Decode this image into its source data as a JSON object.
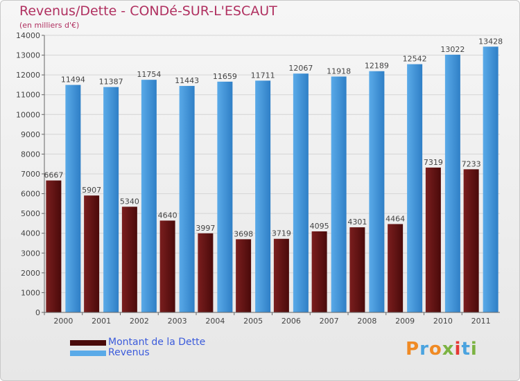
{
  "title": "Revenus/Dette - CONDé-SUR-L'ESCAUT",
  "subtitle": "(en milliers d'€)",
  "logo": {
    "text": "Proxiti",
    "letters": [
      {
        "ch": "P",
        "color": "#f08a24"
      },
      {
        "ch": "r",
        "color": "#4aa3df"
      },
      {
        "ch": "o",
        "color": "#f08a24"
      },
      {
        "ch": "x",
        "color": "#7cb342"
      },
      {
        "ch": "i",
        "color": "#e53935"
      },
      {
        "ch": "t",
        "color": "#4aa3df"
      },
      {
        "ch": "i",
        "color": "#7cb342"
      }
    ]
  },
  "colors": {
    "debt": "#7a1e1e",
    "debt_dark": "#4a0a0a",
    "revenue": "#5aaae8",
    "revenue_dark": "#2f7fc6",
    "axis": "#666666",
    "grid": "#d4d4d4",
    "label": "#444444"
  },
  "chart_data": {
    "type": "bar",
    "title": "Revenus/Dette - CONDé-SUR-L'ESCAUT",
    "subtitle": "(en milliers d'€)",
    "xlabel": "",
    "ylabel": "",
    "categories": [
      "2000",
      "2001",
      "2002",
      "2003",
      "2004",
      "2005",
      "2006",
      "2007",
      "2008",
      "2009",
      "2010",
      "2011"
    ],
    "series": [
      {
        "name": "Montant de la Dette",
        "values": [
          6667,
          5907,
          5340,
          4640,
          3997,
          3698,
          3719,
          4095,
          4301,
          4464,
          7319,
          7233
        ]
      },
      {
        "name": "Revenus",
        "values": [
          11494,
          11387,
          11754,
          11443,
          11659,
          11711,
          12067,
          11918,
          12189,
          12542,
          13022,
          13428
        ]
      }
    ],
    "ylim": [
      0,
      14000
    ],
    "yticks": [
      0,
      1000,
      2000,
      3000,
      4000,
      5000,
      6000,
      7000,
      8000,
      9000,
      10000,
      11000,
      12000,
      13000,
      14000
    ],
    "grid": true,
    "legend_position": "bottom-left"
  }
}
